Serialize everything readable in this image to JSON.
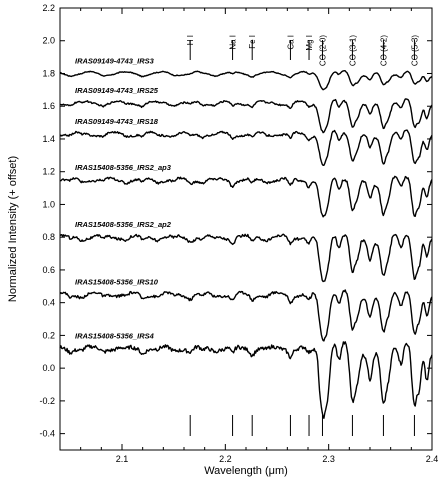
{
  "chart_data": {
    "type": "line",
    "xlabel": "Wavelength (μm)",
    "ylabel": "Normalized Intensity (+ offset)",
    "xlim": [
      2.04,
      2.4
    ],
    "ylim": [
      -0.5,
      2.2
    ],
    "x_ticks": [
      2.1,
      2.2,
      2.3,
      2.4
    ],
    "y_ticks": [
      -0.4,
      -0.2,
      0.0,
      0.2,
      0.4,
      0.6,
      0.8,
      1.0,
      1.2,
      1.4,
      1.6,
      1.8,
      2.0,
      2.2
    ],
    "x_tick_labels": [
      "2.1",
      "2.2",
      "2.3",
      "2.4"
    ],
    "y_tick_labels": [
      "-0.4",
      "-0.2",
      "0.0",
      "0.2",
      "0.4",
      "0.6",
      "0.8",
      "1.0",
      "1.2",
      "1.4",
      "1.6",
      "1.8",
      "2.0",
      "2.2"
    ],
    "lines": [
      {
        "wavelength": 2.166,
        "label": "H I"
      },
      {
        "wavelength": 2.207,
        "label": "Na I"
      },
      {
        "wavelength": 2.226,
        "label": "Fe I"
      },
      {
        "wavelength": 2.263,
        "label": "Ca I"
      },
      {
        "wavelength": 2.281,
        "label": "Mg I"
      },
      {
        "wavelength": 2.294,
        "label": "CO (2-0)"
      },
      {
        "wavelength": 2.323,
        "label": "CO (3-1)"
      },
      {
        "wavelength": 2.353,
        "label": "CO (4-2)"
      },
      {
        "wavelength": 2.383,
        "label": "CO (5-3)"
      }
    ],
    "series": [
      {
        "name": "IRAS09149-4743_IRS3",
        "offset": 1.8,
        "amp": 0.4
      },
      {
        "name": "IRAS09149-4743_IRS25",
        "offset": 1.62,
        "amp": 0.8
      },
      {
        "name": "IRAS09149-4743_IRS18",
        "offset": 1.43,
        "amp": 0.9
      },
      {
        "name": "IRAS15408-5356_IRS2_ap3",
        "offset": 1.15,
        "amp": 1.1
      },
      {
        "name": "IRAS15408-5356_IRS2_ap2",
        "offset": 0.8,
        "amp": 1.3
      },
      {
        "name": "IRAS15408-5356_IRS10",
        "offset": 0.45,
        "amp": 1.3
      },
      {
        "name": "IRAS15408-5356_IRS4",
        "offset": 0.12,
        "amp": 1.9
      }
    ]
  }
}
